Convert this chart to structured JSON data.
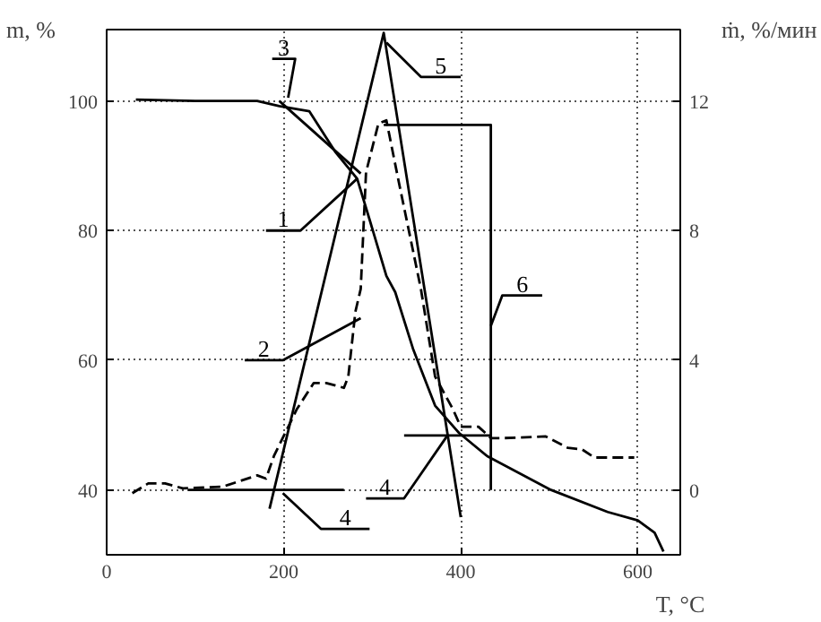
{
  "chart_data": {
    "type": "line",
    "xlabel": "T, °C",
    "ylabel": "m, %",
    "y2label": "ṁ, %/мин",
    "xlim": [
      0,
      648
    ],
    "xticks": [
      0,
      200,
      400,
      600
    ],
    "ylim": [
      30,
      111
    ],
    "yticks": [
      40,
      60,
      80,
      100
    ],
    "y2lim": [
      -2,
      14.2
    ],
    "y2ticks": [
      0,
      4,
      8,
      12
    ],
    "grid": true,
    "marker": "none",
    "series": [
      {
        "color": "#000000",
        "line_style": "solid",
        "x": [
          33,
          100,
          170,
          195,
          229,
          258,
          283,
          297,
          316,
          326,
          346,
          371,
          398,
          430,
          502,
          566,
          600,
          619,
          629
        ],
        "values": [
          100.2,
          100,
          100,
          99.2,
          98.4,
          92.2,
          88,
          81.7,
          73,
          70.5,
          61.8,
          53,
          48.8,
          45.2,
          40,
          36.6,
          35.3,
          33.4,
          30.5
        ]
      },
      {
        "color": "#000000",
        "line_style": "dashed",
        "axis": "y2",
        "x": [
          29,
          47,
          66,
          86,
          131,
          170,
          180,
          189,
          215,
          234,
          248,
          268,
          273,
          281,
          287,
          293,
          307,
          316,
          330,
          355,
          371,
          391,
          400,
          420,
          434,
          449,
          496,
          521,
          537,
          551,
          596
        ],
        "values": [
          -0.1,
          0.2,
          0.2,
          0.05,
          0.1,
          0.45,
          0.35,
          1.05,
          2.5,
          3.3,
          3.3,
          3.15,
          3.5,
          5.5,
          6.2,
          9.8,
          11.3,
          11.4,
          9.5,
          6.2,
          3.5,
          2.5,
          1.95,
          1.95,
          1.6,
          1.6,
          1.65,
          1.3,
          1.25,
          1.0,
          1.0
        ]
      },
      {
        "color": "#000000",
        "line_style": "solid",
        "x": [
          195,
          287
        ],
        "values": [
          100,
          88.8
        ]
      },
      {
        "color": "#000000",
        "line_style": "solid",
        "x": [
          184,
          313,
          400
        ],
        "values": [
          37.1,
          110.5,
          35.8
        ]
      },
      {
        "color": "#000000",
        "line_style": "solid",
        "x": [
          92,
          268
        ],
        "values": [
          40,
          40
        ]
      },
      {
        "color": "#000000",
        "line_style": "solid",
        "x": [
          336,
          434
        ],
        "values": [
          48.4,
          48.4
        ]
      },
      {
        "color": "#000000",
        "line_style": "solid",
        "x": [
          313,
          434,
          434
        ],
        "values": [
          96.3,
          96.3,
          40
        ]
      },
      {
        "color": "#000000",
        "line_style": "solid",
        "x": [
          187,
          213,
          205
        ],
        "values": [
          106.5,
          106.5,
          100.5
        ]
      },
      {
        "color": "#000000",
        "line_style": "solid",
        "x": [
          180,
          219,
          283
        ],
        "values": [
          80,
          80,
          88
        ]
      },
      {
        "color": "#000000",
        "line_style": "solid",
        "x": [
          156,
          199,
          287
        ],
        "values": [
          60,
          60,
          66.5
        ]
      },
      {
        "color": "#000000",
        "line_style": "solid",
        "x": [
          297,
          242,
          199
        ],
        "values": [
          34,
          34,
          39.5
        ]
      },
      {
        "color": "#000000",
        "line_style": "solid",
        "x": [
          293,
          336,
          385
        ],
        "values": [
          38.7,
          38.7,
          48.4
        ]
      },
      {
        "color": "#000000",
        "line_style": "solid",
        "x": [
          400,
          355,
          316
        ],
        "values": [
          103.7,
          103.7,
          109
        ]
      },
      {
        "color": "#000000",
        "line_style": "solid",
        "x": [
          492,
          447,
          434
        ],
        "values": [
          70,
          70,
          65.3
        ]
      }
    ],
    "annotations": [
      "3",
      "1",
      "2",
      "4",
      "4",
      "5",
      "6"
    ]
  }
}
